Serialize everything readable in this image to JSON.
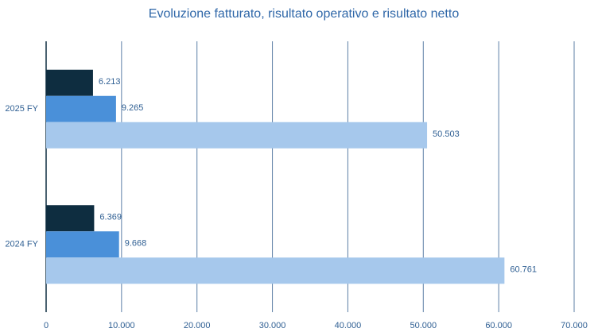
{
  "chart_data": {
    "type": "hbar",
    "title": "Evoluzione fatturato, risultato operativo e risultato netto",
    "categories": [
      "2025 FY",
      "2024 FY"
    ],
    "series": [
      {
        "color": "#0e2d40",
        "values": [
          6213,
          6369
        ],
        "value_labels": [
          "6.213",
          "6.369"
        ]
      },
      {
        "color": "#4a90d9",
        "values": [
          9265,
          9668
        ],
        "value_labels": [
          "9.265",
          "9.668"
        ]
      },
      {
        "color": "#a6c8ec",
        "values": [
          50503,
          60761
        ],
        "value_labels": [
          "50.503",
          "60.761"
        ]
      }
    ],
    "xlim": [
      0,
      70000
    ],
    "xticks": [
      0,
      {
        "value": 10000,
        "label": "10.000"
      },
      {
        "value": 20000,
        "label": "20.000"
      },
      {
        "value": 30000,
        "label": "30.000"
      },
      {
        "value": 40000,
        "label": "40.000"
      },
      {
        "value": 50000,
        "label": "50.000"
      },
      {
        "value": 60000,
        "label": "60.000"
      },
      {
        "value": 70000,
        "label": "70.000"
      }
    ],
    "grid": true
  }
}
